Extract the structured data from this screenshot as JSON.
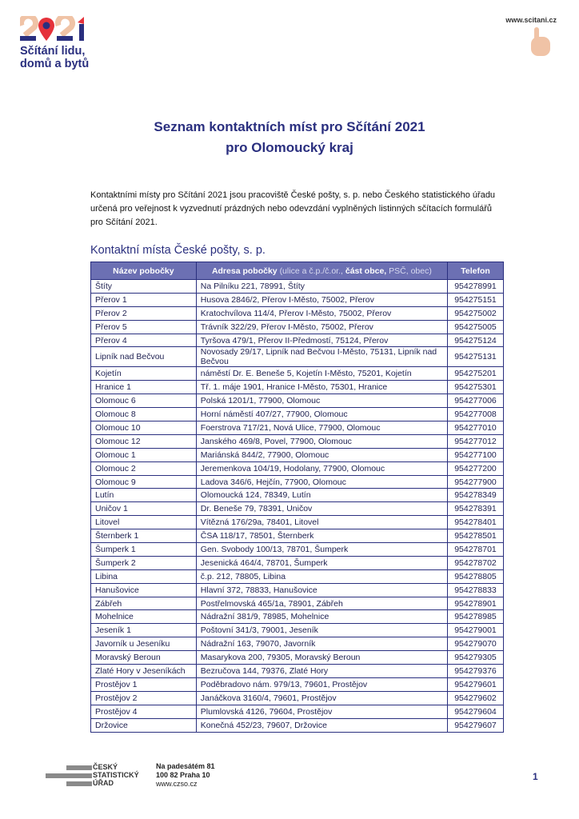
{
  "header": {
    "logo_year": "2021",
    "logo_line1": "Sčítání lidu,",
    "logo_line2": "domů a bytů",
    "website": "www.scitani.cz",
    "colors": {
      "navy": "#2a2f7f",
      "red": "#e5323b",
      "peach": "#f0c3a6"
    }
  },
  "title_line1": "Seznam kontaktních míst pro Sčítání 2021",
  "title_line2": "pro Olomoucký kraj",
  "intro": "Kontaktními místy pro Sčítání 2021 jsou pracoviště České pošty, s. p. nebo Českého statistického úřadu určená pro veřejnost k vyzvednutí prázdných nebo odevzdání vyplněných listinných sčítacích formulářů pro Sčítání 2021.",
  "section_title": "Kontaktní místa České pošty, s. p.",
  "table": {
    "headers": {
      "name": "Název pobočky",
      "address": "Adresa pobočky",
      "address_sub1": "(ulice a č.p./č.or.,",
      "address_sub2": "část obce,",
      "address_sub3": "PSČ, obec)",
      "phone": "Telefon"
    },
    "rows": [
      [
        "Štíty",
        "Na Pilníku 221, 78991, Štíty",
        "954278991"
      ],
      [
        "Přerov 1",
        "Husova 2846/2, Přerov I-Město, 75002, Přerov",
        "954275151"
      ],
      [
        "Přerov 2",
        "Kratochvílova 114/4, Přerov I-Město, 75002, Přerov",
        "954275002"
      ],
      [
        "Přerov 5",
        "Trávník 322/29, Přerov I-Město, 75002, Přerov",
        "954275005"
      ],
      [
        "Přerov 4",
        "Tyršova 479/1, Přerov II-Předmostí, 75124, Přerov",
        "954275124"
      ],
      [
        "Lipník nad Bečvou",
        "Novosady 29/17, Lipník nad Bečvou I-Město, 75131, Lipník nad Bečvou",
        "954275131"
      ],
      [
        "Kojetín",
        "náměstí Dr. E. Beneše 5, Kojetín I-Město, 75201, Kojetín",
        "954275201"
      ],
      [
        "Hranice 1",
        "Tř. 1. máje 1901, Hranice I-Město, 75301, Hranice",
        "954275301"
      ],
      [
        "Olomouc 6",
        "Polská 1201/1, 77900, Olomouc",
        "954277006"
      ],
      [
        "Olomouc 8",
        "Horní náměstí 407/27, 77900, Olomouc",
        "954277008"
      ],
      [
        "Olomouc 10",
        "Foerstrova 717/21, Nová Ulice, 77900, Olomouc",
        "954277010"
      ],
      [
        "Olomouc 12",
        "Janského 469/8, Povel, 77900, Olomouc",
        "954277012"
      ],
      [
        "Olomouc 1",
        "Mariánská 844/2, 77900, Olomouc",
        "954277100"
      ],
      [
        "Olomouc 2",
        "Jeremenkova 104/19, Hodolany, 77900, Olomouc",
        "954277200"
      ],
      [
        "Olomouc 9",
        "Ladova 346/6, Hejčín, 77900, Olomouc",
        "954277900"
      ],
      [
        "Lutín",
        "Olomoucká 124, 78349, Lutín",
        "954278349"
      ],
      [
        "Uničov 1",
        "Dr. Beneše 79, 78391, Uničov",
        "954278391"
      ],
      [
        "Litovel",
        "Vítězná 176/29a, 78401, Litovel",
        "954278401"
      ],
      [
        "Šternberk 1",
        "ČSA 118/17, 78501, Šternberk",
        "954278501"
      ],
      [
        "Šumperk 1",
        "Gen. Svobody 100/13, 78701, Šumperk",
        "954278701"
      ],
      [
        "Šumperk 2",
        "Jesenická 464/4, 78701, Šumperk",
        "954278702"
      ],
      [
        "Libina",
        "č.p. 212, 78805, Libina",
        "954278805"
      ],
      [
        "Hanušovice",
        "Hlavní 372, 78833, Hanušovice",
        "954278833"
      ],
      [
        "Zábřeh",
        "Postřelmovská 465/1a, 78901, Zábřeh",
        "954278901"
      ],
      [
        "Mohelnice",
        "Nádražní 381/9, 78985, Mohelnice",
        "954278985"
      ],
      [
        "Jeseník 1",
        "Poštovní 341/3, 79001, Jeseník",
        "954279001"
      ],
      [
        "Javorník u Jeseníku",
        "Nádražní 163, 79070, Javorník",
        "954279070"
      ],
      [
        "Moravský Beroun",
        "Masarykova 200, 79305, Moravský Beroun",
        "954279305"
      ],
      [
        "Zlaté Hory v Jeseníkách",
        "Bezručova 144, 79376, Zlaté Hory",
        "954279376"
      ],
      [
        "Prostějov 1",
        "Poděbradovo nám. 979/13, 79601, Prostějov",
        "954279601"
      ],
      [
        "Prostějov 2",
        "Janáčkova 3160/4, 79601, Prostějov",
        "954279602"
      ],
      [
        "Prostějov 4",
        "Plumlovská 4126, 79604, Prostějov",
        "954279604"
      ],
      [
        "Držovice",
        "Konečná 452/23, 79607, Držovice",
        "954279607"
      ]
    ]
  },
  "footer": {
    "org_line1": "ČESKÝ",
    "org_line2": "STATISTICKÝ",
    "org_line3": "ÚŘAD",
    "address_line1": "Na padesátém 81",
    "address_line2": "100 82 Praha 10",
    "website": "www.czso.cz",
    "page_number": "1"
  }
}
